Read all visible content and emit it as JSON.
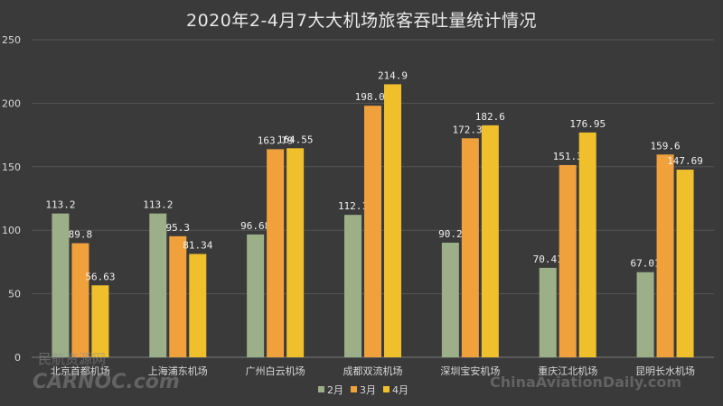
{
  "chart_data": {
    "type": "bar",
    "title": "2020年2-4月7大大机场旅客吞吐量统计情况",
    "categories": [
      "北京首都机场",
      "上海浦东机场",
      "广州白云机场",
      "成都双流机场",
      "深圳宝安机场",
      "重庆江北机场",
      "昆明长水机场"
    ],
    "series": [
      {
        "name": "2月",
        "color": "#9caf88",
        "values": [
          113.2,
          113.2,
          96.68,
          112.1,
          90.2,
          70.41,
          67.01
        ]
      },
      {
        "name": "3月",
        "color": "#f0a13c",
        "values": [
          89.8,
          95.3,
          163.79,
          198.02,
          172.38,
          151.3,
          159.6
        ]
      },
      {
        "name": "4月",
        "color": "#f0c02c",
        "values": [
          56.63,
          81.34,
          164.55,
          214.9,
          182.6,
          176.95,
          147.69
        ]
      }
    ],
    "ylim": [
      0,
      250
    ],
    "yticks": [
      0,
      50,
      100,
      150,
      200,
      250
    ],
    "grid": true,
    "legend": "bottom-center"
  },
  "watermarks": {
    "left_top": "民航资源网",
    "left_bottom": "CARNOC.com",
    "right": "ChinaAviationDaily.com"
  }
}
